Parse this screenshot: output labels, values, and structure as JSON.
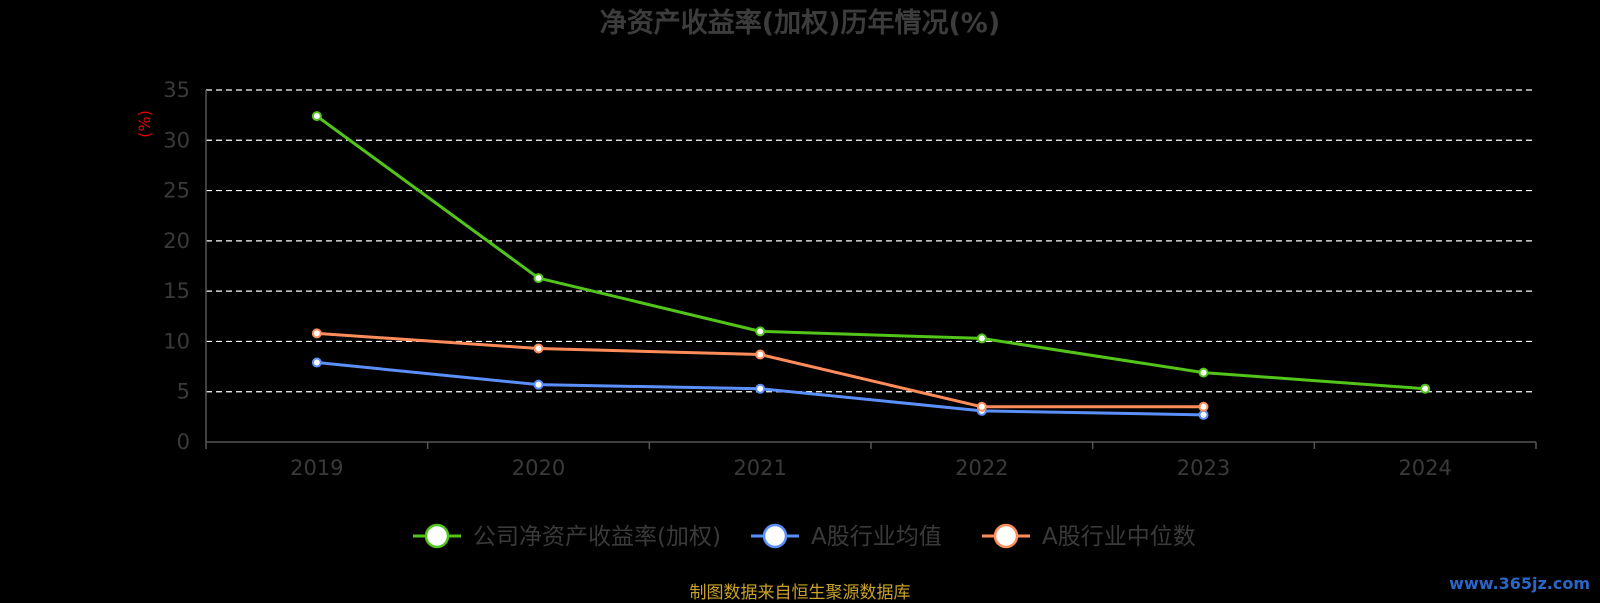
{
  "chart_data": {
    "type": "line",
    "title": "净资产收益率(加权)历年情况(%)",
    "ylabel": "(%)",
    "ylim": [
      0,
      35
    ],
    "yticks": [
      "0",
      "5",
      "10",
      "15",
      "20",
      "25",
      "30",
      "35"
    ],
    "categories": [
      "2019",
      "2020",
      "2021",
      "2022",
      "2023",
      "2024"
    ],
    "grid": true,
    "legend_position": "bottom",
    "series": [
      {
        "name": "公司净资产收益率(加权)",
        "color": "#52c41a",
        "values": [
          32.4,
          16.3,
          11.0,
          10.3,
          6.9,
          5.3
        ]
      },
      {
        "name": "A股行业均值",
        "color": "#5b8ff9",
        "values": [
          7.9,
          5.7,
          5.3,
          3.1,
          2.7,
          null
        ]
      },
      {
        "name": "A股行业中位数",
        "color": "#ff8c5a",
        "values": [
          10.8,
          9.3,
          8.7,
          3.5,
          3.5,
          null
        ]
      }
    ]
  },
  "footer": {
    "source": "制图数据来自恒生聚源数据库",
    "watermark": "www.365jz.com"
  }
}
